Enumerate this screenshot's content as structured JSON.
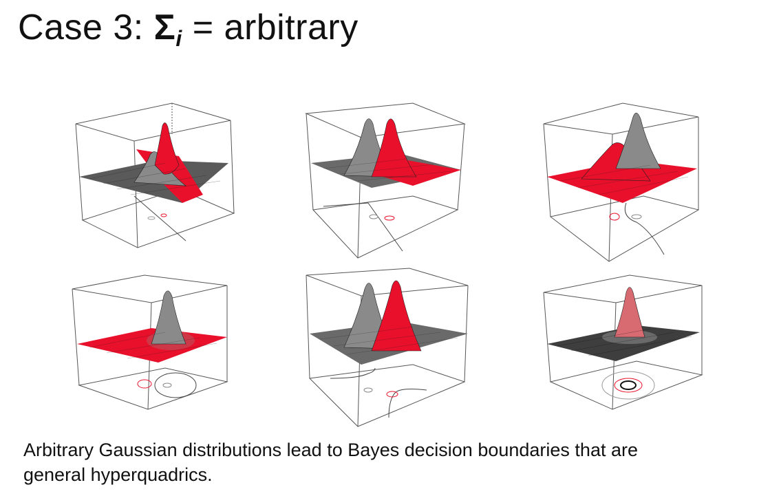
{
  "slide": {
    "title_prefix": "Case 3: ",
    "title_symbol": "Σ",
    "title_subscript": "i",
    "title_suffix": " = arbitrary",
    "caption_line1": "Arbitrary Gaussian distributions lead to Bayes decision boundaries  that are",
    "caption_line2": "general hyperquadrics."
  },
  "colors": {
    "red": "#e8102a",
    "gray": "#8a8a8a",
    "dark_gray": "#4a4a4a",
    "mesh": "#222222",
    "box": "#555555"
  },
  "panels": [
    {
      "id": "panel-1",
      "plane_color": "gray",
      "peaks": [
        "red-tall-ridge",
        "gray-wide"
      ],
      "floor_contours": [
        "gray-ellipse",
        "red-ellipse"
      ],
      "boundary": "diagonal-line"
    },
    {
      "id": "panel-2",
      "plane_color": "mixed",
      "peaks": [
        "gray",
        "red"
      ],
      "floor_contours": [
        "gray-ellipse",
        "red-ellipse"
      ],
      "boundary": "straight-line"
    },
    {
      "id": "panel-3",
      "plane_color": "red",
      "peaks": [
        "red-low",
        "gray-tall"
      ],
      "floor_contours": [
        "red-ellipse",
        "gray-ellipse"
      ],
      "boundary": "hyperbola"
    },
    {
      "id": "panel-4",
      "plane_color": "red",
      "peaks": [
        "gray-tall"
      ],
      "floor_contours": [
        "red-ellipse",
        "gray-ellipse"
      ],
      "boundary": "ellipse"
    },
    {
      "id": "panel-5",
      "plane_color": "gray",
      "peaks": [
        "gray",
        "red"
      ],
      "floor_contours": [
        "gray-ellipse",
        "red-ellipse"
      ],
      "boundary": "hyperbola"
    },
    {
      "id": "panel-6",
      "plane_color": "dark-gray",
      "peaks": [
        "red-narrow",
        "gray-broad"
      ],
      "floor_contours": [
        "black-circle",
        "red-circle",
        "gray-circle"
      ],
      "boundary": "concentric-circles"
    }
  ]
}
